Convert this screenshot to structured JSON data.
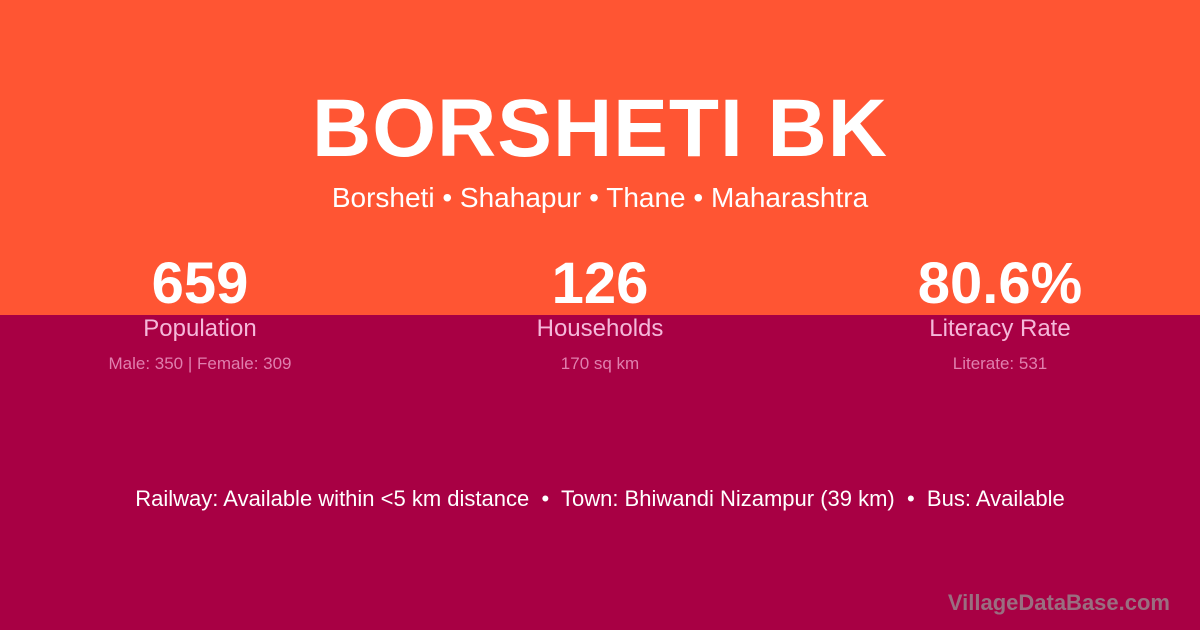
{
  "title": "BORSHETI BK",
  "location": "Borsheti • Shahapur • Thane • Maharashtra",
  "stats": [
    {
      "value": "659",
      "label": "Population",
      "detail": "Male: 350 | Female: 309"
    },
    {
      "value": "126",
      "label": "Households",
      "detail": "170 sq km"
    },
    {
      "value": "80.6%",
      "label": "Literacy Rate",
      "detail": "Literate: 531"
    }
  ],
  "info": "Railway: Available within <5 km distance  •  Town: Bhiwandi Nizampur (39 km)  •  Bus: Available",
  "watermark": "VillageDataBase.com",
  "colors": {
    "top": "#FF5533",
    "bottom": "#A80044"
  }
}
